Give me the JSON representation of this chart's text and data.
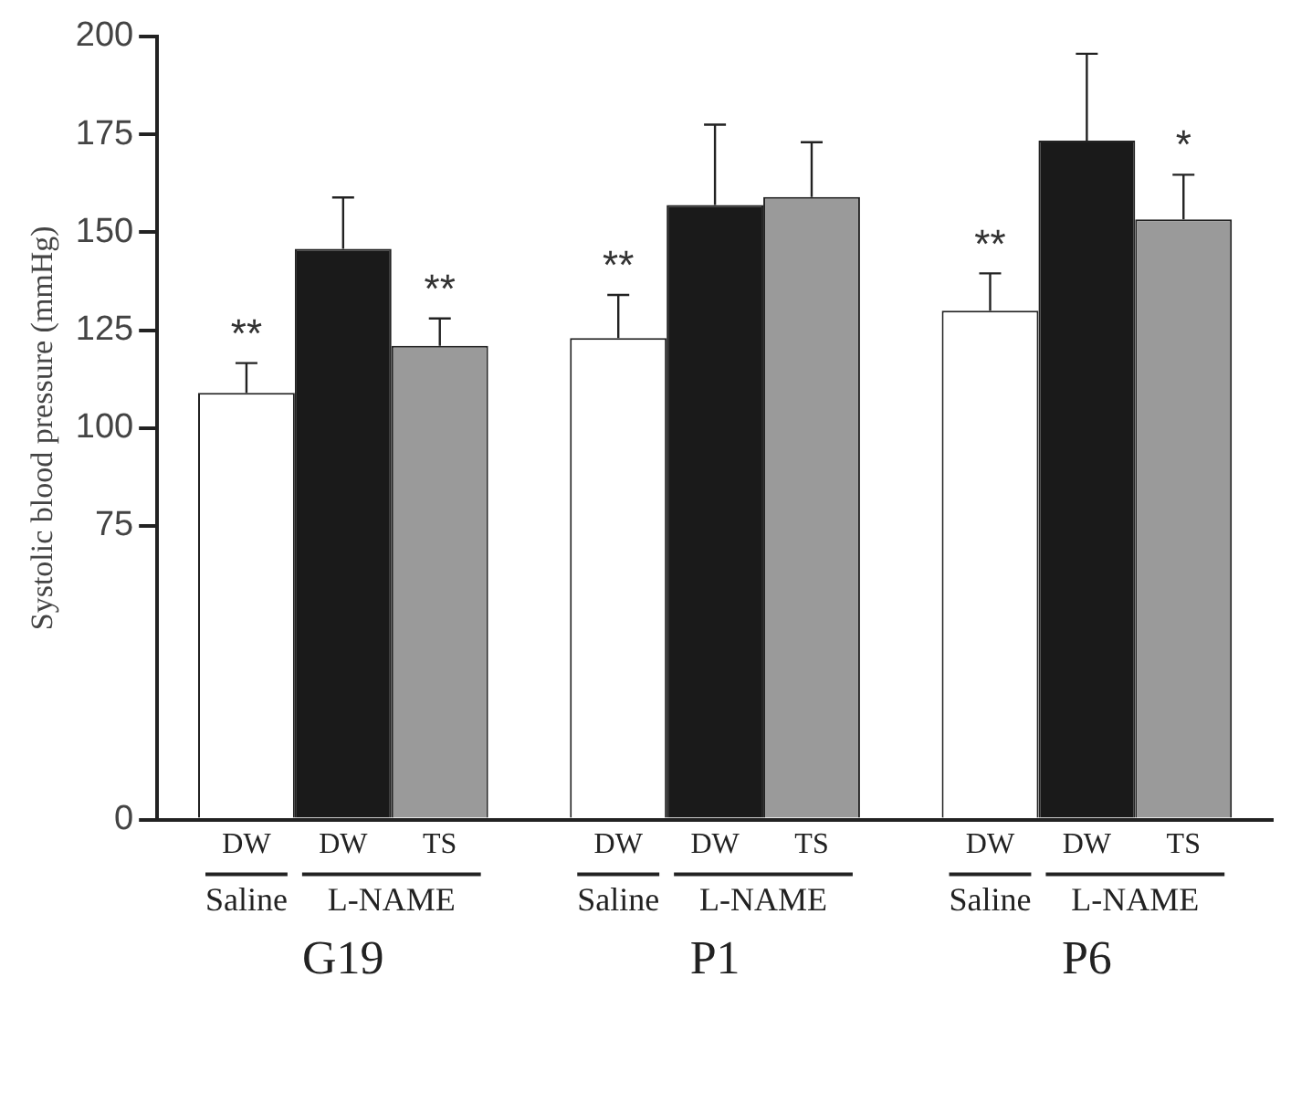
{
  "chart_data": {
    "type": "bar",
    "ylabel": "Systolic blood pressure (mmHg)",
    "categories": [
      "G19",
      "P1",
      "P6"
    ],
    "series": [
      {
        "name": "DW",
        "color": "#ffffff",
        "values": [
          109,
          123,
          130
        ],
        "errors": [
          [
            109,
            116.6
          ],
          [
            123,
            134
          ],
          [
            130,
            139.5
          ]
        ]
      },
      {
        "name": "DW",
        "color": "#1a1a1a",
        "values": [
          145.8,
          157,
          173.4
        ],
        "errors": [
          [
            145.8,
            158.9
          ],
          [
            157,
            177.5
          ],
          [
            173.4,
            195.6
          ]
        ]
      },
      {
        "name": "TS",
        "color": "#9a9a9a",
        "values": [
          121,
          159,
          153.3
        ],
        "errors": [
          [
            121,
            128
          ],
          [
            159,
            173
          ],
          [
            153.3,
            164.7
          ]
        ]
      }
    ],
    "ylim": [
      0,
      200
    ],
    "yticks": [
      0,
      75,
      100,
      125,
      150,
      175,
      200
    ],
    "grid": false,
    "legend": false,
    "annotations": [
      "Saline",
      "L-NAME",
      "**",
      "**",
      "**",
      "**",
      "*"
    ]
  }
}
